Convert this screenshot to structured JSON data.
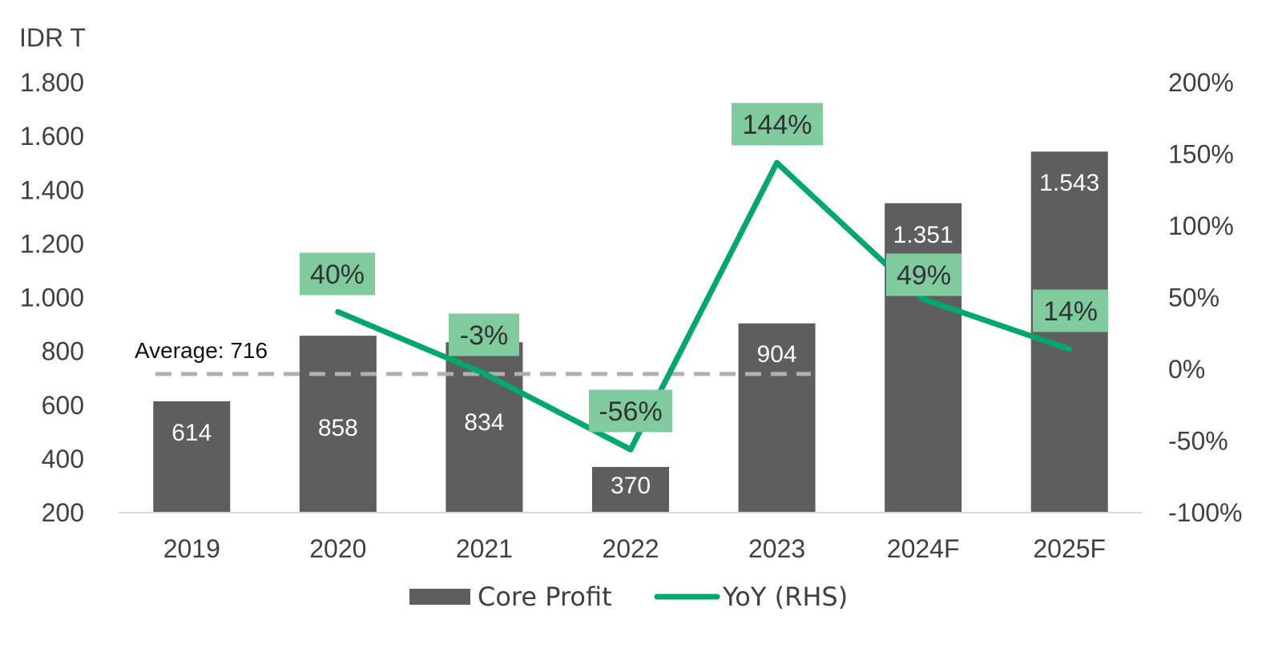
{
  "chart_data": {
    "type": "bar",
    "unit_label": "IDR T",
    "categories": [
      "2019",
      "2020",
      "2021",
      "2022",
      "2023",
      "2024F",
      "2025F"
    ],
    "series": [
      {
        "name": "Core Profit",
        "type": "bar",
        "axis": "left",
        "values": [
          614,
          858,
          834,
          370,
          904,
          1351,
          1543
        ],
        "labels": [
          "614",
          "858",
          "834",
          "370",
          "904",
          "1.351",
          "1.543"
        ]
      },
      {
        "name": "YoY (RHS)",
        "type": "line",
        "axis": "right",
        "values": [
          null,
          40,
          -3,
          -56,
          144,
          49,
          14
        ],
        "labels": [
          "",
          "40%",
          "-3%",
          "-56%",
          "144%",
          "49%",
          "14%"
        ]
      }
    ],
    "average": {
      "value": 716,
      "label": "Average: 716"
    },
    "left_axis": {
      "ylim": [
        200,
        1800
      ],
      "ticks": [
        200,
        400,
        600,
        800,
        1000,
        1200,
        1400,
        1600,
        1800
      ],
      "tick_labels": [
        "200",
        "400",
        "600",
        "800",
        "1.000",
        "1.200",
        "1.400",
        "1.600",
        "1.800"
      ]
    },
    "right_axis": {
      "ylim": [
        -100,
        200
      ],
      "ticks": [
        -100,
        -50,
        0,
        50,
        100,
        150,
        200
      ],
      "tick_labels": [
        "-100%",
        "-50%",
        "0%",
        "50%",
        "100%",
        "150%",
        "200%"
      ]
    },
    "legend_position": "bottom-center",
    "grid": false,
    "colors": {
      "bar": "#5e5e5e",
      "line": "#00a86b",
      "label_box": "#7fcb9d",
      "average_line": "#b0b0b0",
      "axis_line": "#d9d9d9"
    }
  }
}
